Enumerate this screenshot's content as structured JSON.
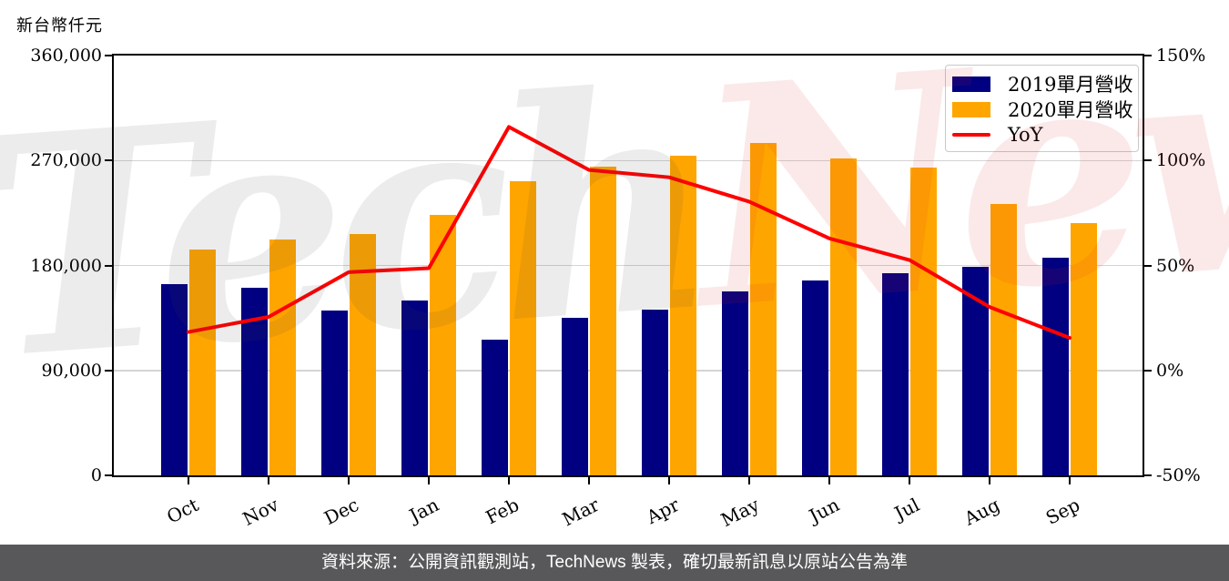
{
  "page": {
    "background": "#ffffff",
    "unit_label": "新台幣仟元",
    "watermark": {
      "text_part_gray": "Tech",
      "text_part_red": "News",
      "gray_color": "rgba(70,70,70,0.10)",
      "red_color": "rgba(220,40,40,0.10)"
    },
    "footer": {
      "text": "資料來源：公開資訊觀測站，TechNews 製表，確切最新訊息以原站公告為準",
      "background": "#58585a",
      "text_color": "#ffffff"
    }
  },
  "chart_data": {
    "type": "bar",
    "title": "",
    "categories": [
      "Oct",
      "Nov",
      "Dec",
      "Jan",
      "Feb",
      "Mar",
      "Apr",
      "May",
      "Jun",
      "Jul",
      "Aug",
      "Sep"
    ],
    "series": [
      {
        "name": "2019單月營收",
        "type": "bar",
        "axis": "left",
        "color": "#000080",
        "values": [
          164000,
          161000,
          141000,
          150000,
          116000,
          135000,
          142000,
          158000,
          167000,
          173000,
          179000,
          187000
        ]
      },
      {
        "name": "2020單月營收",
        "type": "bar",
        "axis": "left",
        "color": "#ffa500",
        "values": [
          194000,
          202000,
          207000,
          223000,
          252000,
          265000,
          274000,
          285000,
          272000,
          264000,
          233000,
          216000
        ]
      },
      {
        "name": "YoY",
        "type": "line",
        "axis": "right",
        "color": "#ff0000",
        "values_percent": [
          18.3,
          25.5,
          46.8,
          48.7,
          116.0,
          95.5,
          92.0,
          80.4,
          62.9,
          52.6,
          30.2,
          15.5
        ]
      }
    ],
    "left_axis": {
      "unit": "新台幣仟元",
      "min": 0,
      "max": 360000,
      "tick_labels": [
        "0",
        "90,000",
        "180,000",
        "270,000",
        "360,000"
      ]
    },
    "right_axis": {
      "min": -50,
      "max": 150,
      "tick_labels": [
        "-50%",
        "0%",
        "50%",
        "100%",
        "150%"
      ]
    },
    "grid": true,
    "grid_color": "#d4d4d4",
    "frame_color": "#000000",
    "legend_position": "top-right"
  },
  "legend": {
    "items": [
      {
        "swatch": "rect",
        "color": "#000080"
      },
      {
        "swatch": "rect",
        "color": "#ffa500"
      },
      {
        "swatch": "line",
        "color": "#ff0000"
      }
    ]
  }
}
